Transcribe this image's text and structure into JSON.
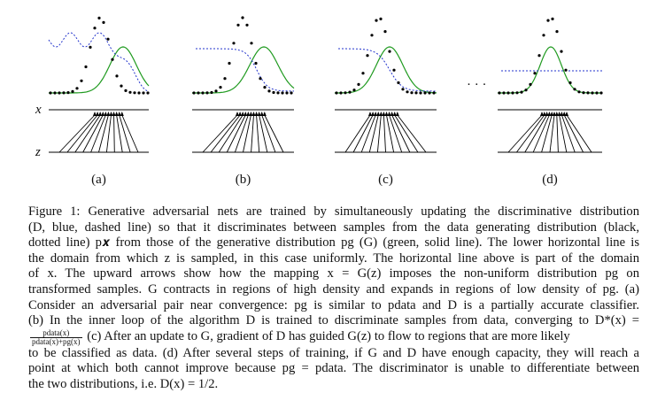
{
  "figure": {
    "panels": [
      {
        "id": "a",
        "label": "(a)"
      },
      {
        "id": "b",
        "label": "(b)"
      },
      {
        "id": "c",
        "label": "(c)"
      },
      {
        "id": "d",
        "label": "(d)"
      }
    ],
    "ellipsis": "· · ·",
    "x_axis_label": "x",
    "z_axis_label": "z",
    "colors": {
      "data_distribution": "#000000",
      "discriminator": "#2233cc",
      "generative_distribution": "#1f9a1f",
      "axes": "#000000"
    }
  },
  "caption": {
    "lines": [
      "Figure 1: Generative adversarial nets are trained by simultaneously updating the discriminative distribution",
      "(D, blue, dashed line) so that it discriminates between samples from the data generating distribution (black,",
      "dotted line) p𝒙 from those of the generative distribution pg (G) (green, solid line). The lower horizontal line is",
      "the domain from which z is sampled, in this case uniformly. The horizontal line above is part of the domain",
      "of x. The upward arrows show how the mapping x = G(z) imposes the non-uniform distribution pg on",
      "transformed samples. G contracts in regions of high density and expands in regions of low density of pg. (a)",
      "Consider an adversarial pair near convergence: pg is similar to pdata and D is a partially accurate classifier.",
      "(b) In the inner loop of the algorithm D is trained to discriminate samples from data, converging to D*(x) =",
      "(c) After an update to G, gradient of D has guided G(z) to flow to regions that are more likely",
      "to be classified as data. (d) After several steps of training, if G and D have enough capacity, they will reach a",
      "point at which both cannot improve because pg = pdata. The discriminator is unable to differentiate between",
      "the two distributions, i.e. D(x) = 1/2."
    ],
    "fraction": {
      "numerator": "pdata(x)",
      "denominator": "pdata(x)+pg(x)"
    }
  }
}
